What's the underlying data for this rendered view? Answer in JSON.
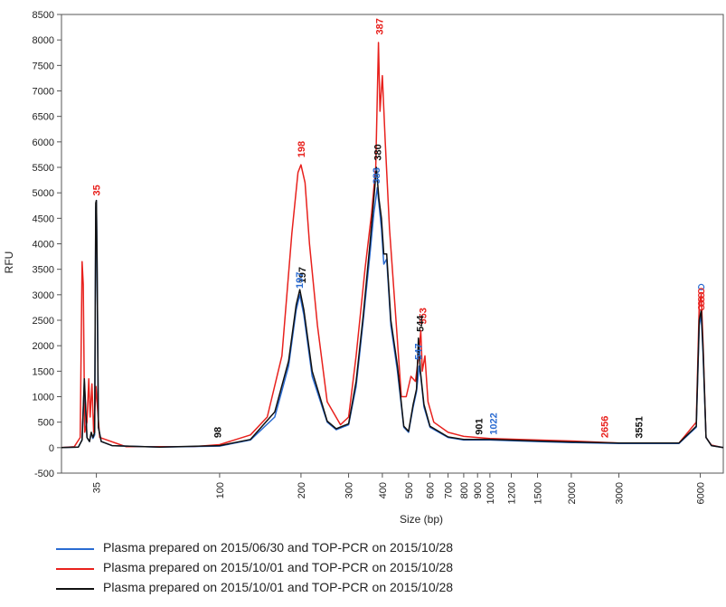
{
  "chart_data": {
    "type": "line",
    "xlabel": "Size (bp)",
    "ylabel": "RFU",
    "x_scale": "log",
    "xlim": [
      26,
      7300
    ],
    "ylim": [
      -500,
      8500
    ],
    "grid": false,
    "legend_position": "bottom-left",
    "y_ticks": [
      -500,
      0,
      500,
      1000,
      1500,
      2000,
      2500,
      3000,
      3500,
      4000,
      4500,
      5000,
      5500,
      6000,
      6500,
      7000,
      7500,
      8000,
      8500
    ],
    "x_ticks": [
      "35",
      "100",
      "200",
      "300",
      "400",
      "500",
      "600",
      "700",
      "800",
      "900",
      "1000",
      "1200",
      "1500",
      "2000",
      "3000",
      "6000"
    ],
    "x_tick_values": [
      35,
      100,
      200,
      300,
      400,
      500,
      600,
      700,
      800,
      900,
      1000,
      1200,
      1500,
      2000,
      3000,
      6000
    ],
    "series": [
      {
        "name": "Plasma prepared on 2015/06/30 and TOP-PCR on 2015/10/28",
        "color": "#2a6bd1",
        "points": [
          [
            26,
            0
          ],
          [
            30,
            10
          ],
          [
            31,
            150
          ],
          [
            31.6,
            1300
          ],
          [
            32.3,
            200
          ],
          [
            33,
            120
          ],
          [
            33.5,
            280
          ],
          [
            34,
            180
          ],
          [
            34.5,
            250
          ],
          [
            34.8,
            4700
          ],
          [
            35,
            4850
          ],
          [
            35.2,
            3800
          ],
          [
            35.6,
            400
          ],
          [
            36.5,
            120
          ],
          [
            40,
            40
          ],
          [
            60,
            10
          ],
          [
            100,
            30
          ],
          [
            130,
            150
          ],
          [
            160,
            600
          ],
          [
            180,
            1600
          ],
          [
            192,
            2700
          ],
          [
            198,
            3000
          ],
          [
            205,
            2600
          ],
          [
            220,
            1400
          ],
          [
            250,
            500
          ],
          [
            270,
            350
          ],
          [
            300,
            450
          ],
          [
            320,
            1200
          ],
          [
            340,
            2500
          ],
          [
            360,
            3800
          ],
          [
            372,
            4600
          ],
          [
            383,
            5100
          ],
          [
            390,
            4700
          ],
          [
            397,
            4300
          ],
          [
            405,
            3600
          ],
          [
            415,
            3700
          ],
          [
            430,
            2400
          ],
          [
            455,
            1500
          ],
          [
            480,
            400
          ],
          [
            500,
            300
          ],
          [
            520,
            800
          ],
          [
            535,
            1100
          ],
          [
            547,
            1600
          ],
          [
            555,
            1400
          ],
          [
            570,
            800
          ],
          [
            600,
            400
          ],
          [
            700,
            200
          ],
          [
            800,
            150
          ],
          [
            1000,
            150
          ],
          [
            1500,
            120
          ],
          [
            2000,
            100
          ],
          [
            3000,
            80
          ],
          [
            5000,
            80
          ],
          [
            5800,
            400
          ],
          [
            5950,
            2400
          ],
          [
            6050,
            2600
          ],
          [
            6150,
            1800
          ],
          [
            6300,
            200
          ],
          [
            6600,
            40
          ],
          [
            7300,
            0
          ]
        ]
      },
      {
        "name": "Plasma prepared on 2015/10/01 and TOP-PCR on 2015/10/28",
        "color": "#e8211d",
        "points": [
          [
            26,
            0
          ],
          [
            29,
            20
          ],
          [
            30.5,
            200
          ],
          [
            31,
            3650
          ],
          [
            31.3,
            3200
          ],
          [
            31.7,
            300
          ],
          [
            32.3,
            500
          ],
          [
            32.8,
            1350
          ],
          [
            33.2,
            600
          ],
          [
            33.7,
            1250
          ],
          [
            34.2,
            300
          ],
          [
            34.9,
            1200
          ],
          [
            35.2,
            900
          ],
          [
            36,
            200
          ],
          [
            45,
            20
          ],
          [
            80,
            20
          ],
          [
            100,
            60
          ],
          [
            130,
            250
          ],
          [
            150,
            600
          ],
          [
            170,
            1800
          ],
          [
            185,
            4200
          ],
          [
            195,
            5400
          ],
          [
            200,
            5550
          ],
          [
            207,
            5200
          ],
          [
            215,
            4000
          ],
          [
            230,
            2400
          ],
          [
            250,
            900
          ],
          [
            280,
            450
          ],
          [
            300,
            600
          ],
          [
            320,
            1800
          ],
          [
            345,
            3500
          ],
          [
            365,
            4600
          ],
          [
            378,
            5500
          ],
          [
            387,
            7950
          ],
          [
            392,
            6600
          ],
          [
            400,
            7300
          ],
          [
            410,
            6000
          ],
          [
            425,
            4300
          ],
          [
            445,
            2800
          ],
          [
            470,
            1000
          ],
          [
            490,
            1000
          ],
          [
            510,
            1400
          ],
          [
            530,
            1300
          ],
          [
            545,
            1800
          ],
          [
            555,
            2300
          ],
          [
            562,
            1500
          ],
          [
            575,
            1800
          ],
          [
            590,
            900
          ],
          [
            620,
            500
          ],
          [
            700,
            300
          ],
          [
            800,
            220
          ],
          [
            1000,
            180
          ],
          [
            1500,
            150
          ],
          [
            2000,
            130
          ],
          [
            3000,
            90
          ],
          [
            5000,
            90
          ],
          [
            5800,
            500
          ],
          [
            5950,
            2800
          ],
          [
            6050,
            3000
          ],
          [
            6150,
            2000
          ],
          [
            6300,
            200
          ],
          [
            6600,
            50
          ],
          [
            7300,
            0
          ]
        ]
      },
      {
        "name": "Plasma prepared on 2015/10/01 and TOP-PCR on 2015/10/28",
        "color": "#111111",
        "points": [
          [
            26,
            0
          ],
          [
            30,
            10
          ],
          [
            31,
            150
          ],
          [
            31.6,
            1350
          ],
          [
            32.3,
            200
          ],
          [
            33,
            120
          ],
          [
            33.5,
            300
          ],
          [
            34,
            200
          ],
          [
            34.5,
            300
          ],
          [
            34.8,
            4800
          ],
          [
            35,
            4850
          ],
          [
            35.2,
            3800
          ],
          [
            35.6,
            400
          ],
          [
            36.5,
            120
          ],
          [
            40,
            40
          ],
          [
            60,
            10
          ],
          [
            100,
            40
          ],
          [
            130,
            160
          ],
          [
            160,
            700
          ],
          [
            180,
            1700
          ],
          [
            192,
            2800
          ],
          [
            198,
            3100
          ],
          [
            205,
            2700
          ],
          [
            220,
            1500
          ],
          [
            250,
            520
          ],
          [
            270,
            370
          ],
          [
            300,
            470
          ],
          [
            320,
            1300
          ],
          [
            340,
            2600
          ],
          [
            360,
            4000
          ],
          [
            375,
            5100
          ],
          [
            380,
            5500
          ],
          [
            388,
            4900
          ],
          [
            397,
            4500
          ],
          [
            405,
            3800
          ],
          [
            415,
            3800
          ],
          [
            430,
            2500
          ],
          [
            455,
            1600
          ],
          [
            480,
            420
          ],
          [
            500,
            320
          ],
          [
            520,
            850
          ],
          [
            535,
            1150
          ],
          [
            544,
            2150
          ],
          [
            553,
            1500
          ],
          [
            570,
            850
          ],
          [
            600,
            420
          ],
          [
            700,
            210
          ],
          [
            800,
            160
          ],
          [
            1000,
            160
          ],
          [
            1500,
            130
          ],
          [
            2000,
            110
          ],
          [
            3000,
            90
          ],
          [
            5000,
            90
          ],
          [
            5800,
            420
          ],
          [
            5950,
            2500
          ],
          [
            6050,
            2700
          ],
          [
            6150,
            1900
          ],
          [
            6300,
            200
          ],
          [
            6600,
            40
          ],
          [
            7300,
            0
          ]
        ]
      }
    ],
    "annotations": [
      {
        "text": "35",
        "x": 35,
        "y": 4870,
        "color": "#e8211d"
      },
      {
        "text": "98",
        "x": 98,
        "y": 120,
        "color": "#111111"
      },
      {
        "text": "198",
        "x": 200,
        "y": 5620,
        "color": "#e8211d"
      },
      {
        "text": "197",
        "x": 202,
        "y": 3150,
        "color": "#111111"
      },
      {
        "text": "197",
        "x": 197,
        "y": 3050,
        "color": "#2a6bd1"
      },
      {
        "text": "387",
        "x": 390,
        "y": 8030,
        "color": "#e8211d"
      },
      {
        "text": "380",
        "x": 384,
        "y": 5560,
        "color": "#111111"
      },
      {
        "text": "383",
        "x": 379,
        "y": 5100,
        "color": "#2a6bd1"
      },
      {
        "text": "553",
        "x": 565,
        "y": 2350,
        "color": "#e8211d"
      },
      {
        "text": "544",
        "x": 551,
        "y": 2200,
        "color": "#111111"
      },
      {
        "text": "547",
        "x": 543,
        "y": 1650,
        "color": "#2a6bd1"
      },
      {
        "text": "901",
        "x": 910,
        "y": 180,
        "color": "#111111"
      },
      {
        "text": "1022",
        "x": 1030,
        "y": 180,
        "color": "#2a6bd1"
      },
      {
        "text": "2656",
        "x": 2656,
        "y": 120,
        "color": "#e8211d"
      },
      {
        "text": "3551",
        "x": 3551,
        "y": 110,
        "color": "#111111"
      }
    ]
  }
}
